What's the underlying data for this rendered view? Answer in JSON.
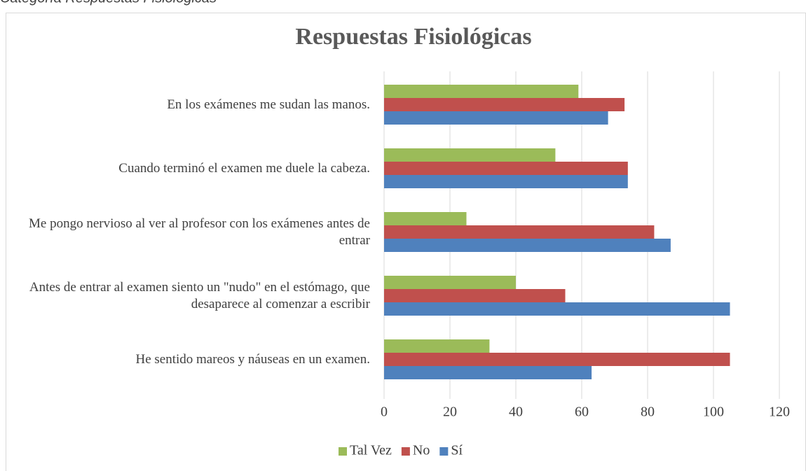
{
  "caption": "Categoría Respuestas Fisiológicas",
  "chart_data": {
    "type": "hbar",
    "title": "Respuestas Fisiológicas",
    "categories": [
      "En los exámenes me sudan las manos.",
      "Cuando terminó el examen me duele la cabeza.",
      "Me pongo nervioso al ver al profesor con los exámenes antes de entrar",
      "Antes de entrar al examen siento un \"nudo\" en el estómago, que desaparece al comenzar a escribir",
      "He sentido mareos y náuseas en un examen."
    ],
    "series": [
      {
        "name": "Tal Vez",
        "color": "#9bbb59",
        "values": [
          59,
          52,
          25,
          40,
          32
        ]
      },
      {
        "name": "No",
        "color": "#c0504d",
        "values": [
          73,
          74,
          82,
          55,
          105
        ]
      },
      {
        "name": "Sí",
        "color": "#4f81bd",
        "values": [
          68,
          74,
          87,
          105,
          63
        ]
      }
    ],
    "xlim": [
      0,
      120
    ],
    "xticks": [
      0,
      20,
      40,
      60,
      80,
      100,
      120
    ],
    "grid": true,
    "legend": "bottom"
  }
}
